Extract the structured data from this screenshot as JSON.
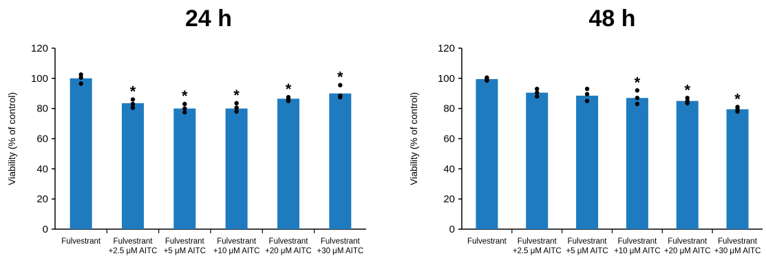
{
  "chart_data": [
    {
      "type": "bar",
      "title": "24 h",
      "ylabel": "Viability (% of control)",
      "xlabel": "",
      "ylim": [
        0,
        120
      ],
      "yticks": [
        0,
        20,
        40,
        60,
        80,
        100,
        120
      ],
      "categories": [
        [
          "Fulvestrant"
        ],
        [
          "Fulvestrant",
          "+2.5 μM AITC"
        ],
        [
          "Fulvestrant",
          "+5 μM AITC"
        ],
        [
          "Fulvestrant",
          "+10 μM AITC"
        ],
        [
          "Fulvestrant",
          "+20 μM AITC"
        ],
        [
          "Fulvestrant",
          "+30 μM AITC"
        ]
      ],
      "values": [
        100,
        83.5,
        80,
        80,
        86.5,
        90
      ],
      "points": [
        [
          96.5,
          100.5,
          102.5
        ],
        [
          80.5,
          83,
          86
        ],
        [
          77.5,
          80,
          83
        ],
        [
          78,
          80.5,
          83.5
        ],
        [
          85,
          86,
          87.5
        ],
        [
          87.5,
          88.5,
          95.5
        ]
      ],
      "significance": [
        "",
        "*",
        "*",
        "*",
        "*",
        "*"
      ],
      "bar_color": "#1f7bbf",
      "grid": false
    },
    {
      "type": "bar",
      "title": "48 h",
      "ylabel": "Viability (% of control)",
      "xlabel": "",
      "ylim": [
        0,
        120
      ],
      "yticks": [
        0,
        20,
        40,
        60,
        80,
        100,
        120
      ],
      "categories": [
        [
          "Fulvestrant"
        ],
        [
          "Fulvestrant",
          "+2.5 μM AITC"
        ],
        [
          "Fulvestrant",
          "+5 μM AITC"
        ],
        [
          "Fulvestrant",
          "+10 μM AITC"
        ],
        [
          "Fulvestrant",
          "+20 μM AITC"
        ],
        [
          "Fulvestrant",
          "+30 μM AITC"
        ]
      ],
      "values": [
        99.5,
        90.5,
        88.5,
        87,
        85,
        79.5
      ],
      "points": [
        [
          98.5,
          99.5,
          100.5
        ],
        [
          88,
          90.5,
          93
        ],
        [
          85,
          89.5,
          93
        ],
        [
          83,
          87,
          92
        ],
        [
          83.5,
          85,
          87
        ],
        [
          78,
          79.5,
          81
        ]
      ],
      "significance": [
        "",
        "",
        "",
        "*",
        "*",
        "*"
      ],
      "bar_color": "#1f7bbf",
      "grid": false
    }
  ]
}
